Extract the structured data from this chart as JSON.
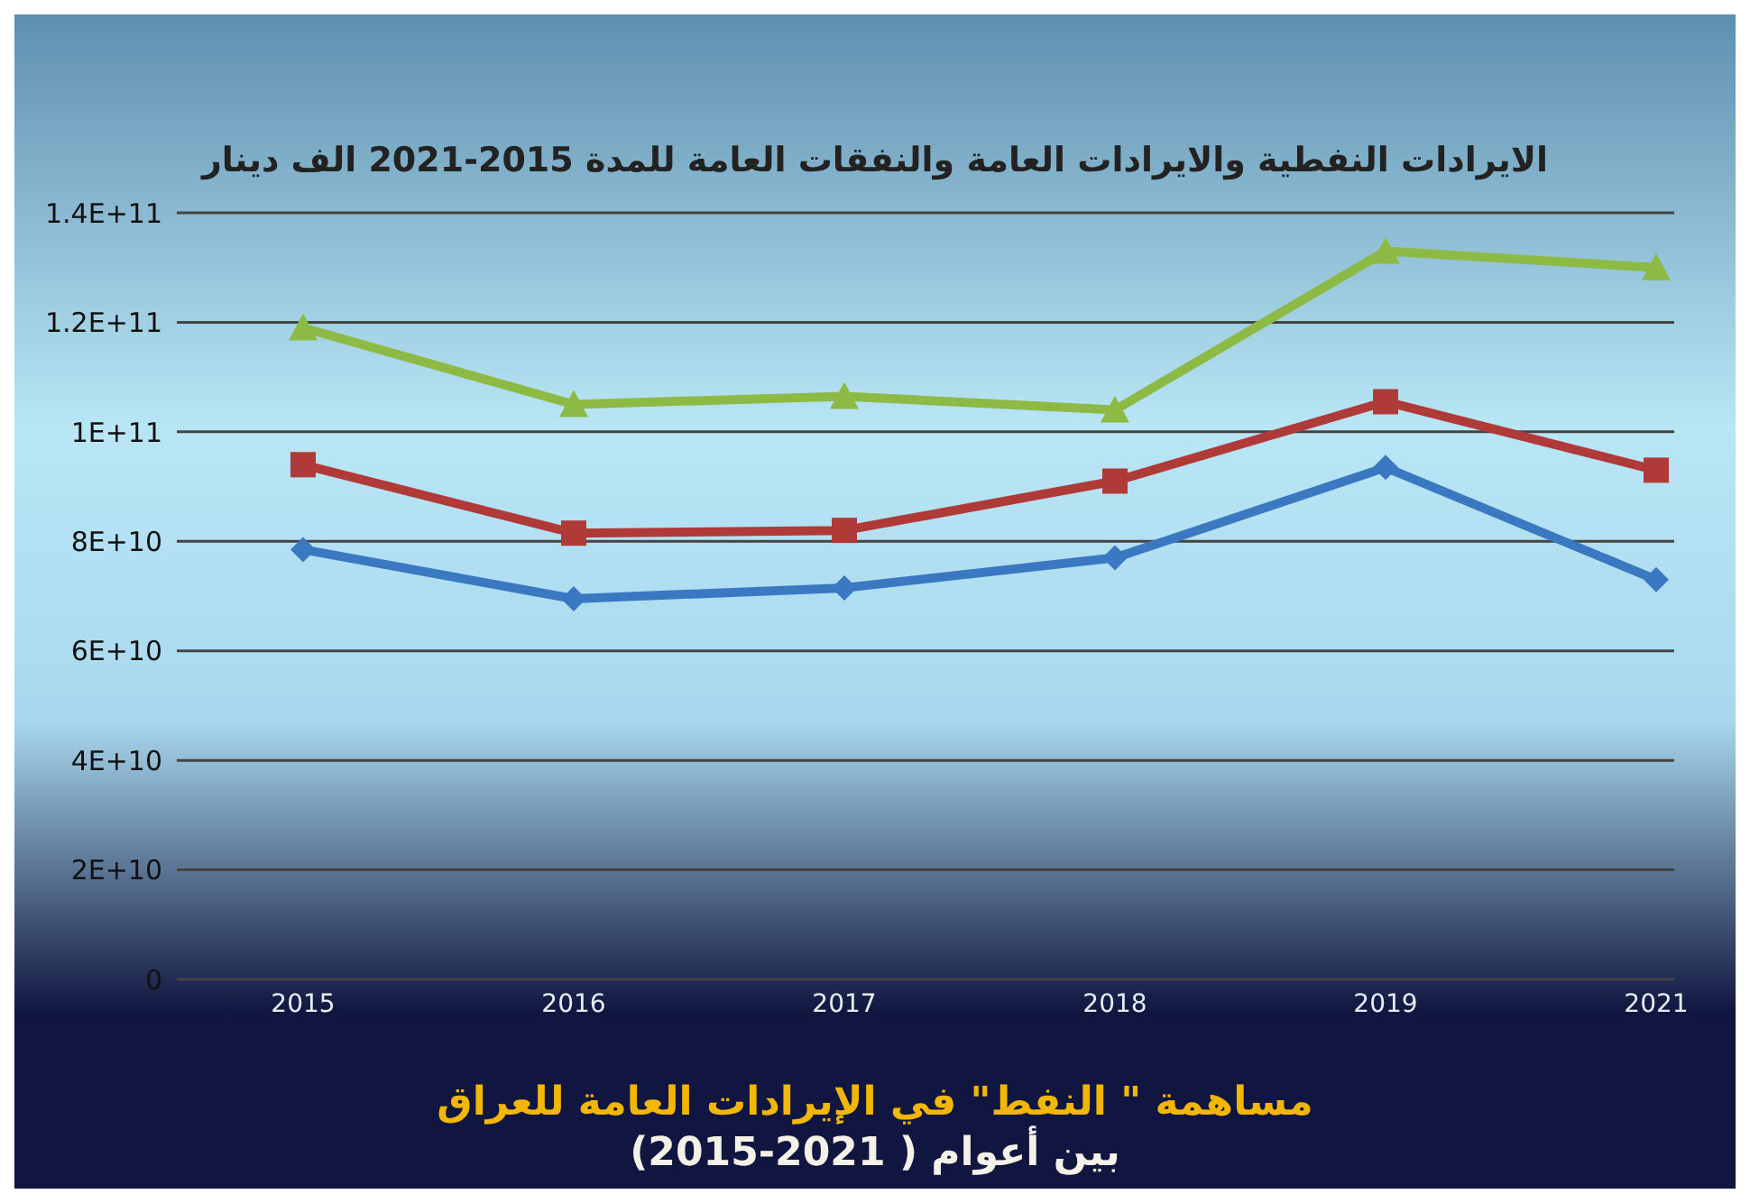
{
  "chart_data": {
    "type": "line",
    "title": "الايرادات النفطية والايرادات العامة والنفقات العامة للمدة 2015-2021 الف دينار",
    "categories": [
      "2015",
      "2016",
      "2017",
      "2018",
      "2019",
      "2021"
    ],
    "series": [
      {
        "color": "#8dba44",
        "marker": "triangle",
        "values": [
          119000000000,
          105000000000,
          106500000000,
          104000000000,
          133000000000,
          130000000000
        ]
      },
      {
        "color": "#b03a38",
        "marker": "square",
        "values": [
          94000000000,
          81500000000,
          82000000000,
          91000000000,
          105500000000,
          93000000000
        ]
      },
      {
        "color": "#3b78c2",
        "marker": "diamond",
        "values": [
          78500000000,
          69500000000,
          71500000000,
          77000000000,
          93500000000,
          73000000000
        ]
      }
    ],
    "ylim": [
      0,
      140000000000
    ],
    "yticks": [
      {
        "value": 0,
        "label": "0"
      },
      {
        "value": 20000000000,
        "label": "2E+10"
      },
      {
        "value": 40000000000,
        "label": "4E+10"
      },
      {
        "value": 60000000000,
        "label": "6E+10"
      },
      {
        "value": 80000000000,
        "label": "8E+10"
      },
      {
        "value": 100000000000,
        "label": "1E+11"
      },
      {
        "value": 120000000000,
        "label": "1.2E+11"
      },
      {
        "value": 140000000000,
        "label": "1.4E+11"
      }
    ],
    "grid": "y",
    "legend": false,
    "line_style": "solid",
    "annotations": [
      "مساهمة \" النفط\" في الإيرادات العامة للعراق",
      "بين أعوام ( 2021-2015)"
    ]
  }
}
